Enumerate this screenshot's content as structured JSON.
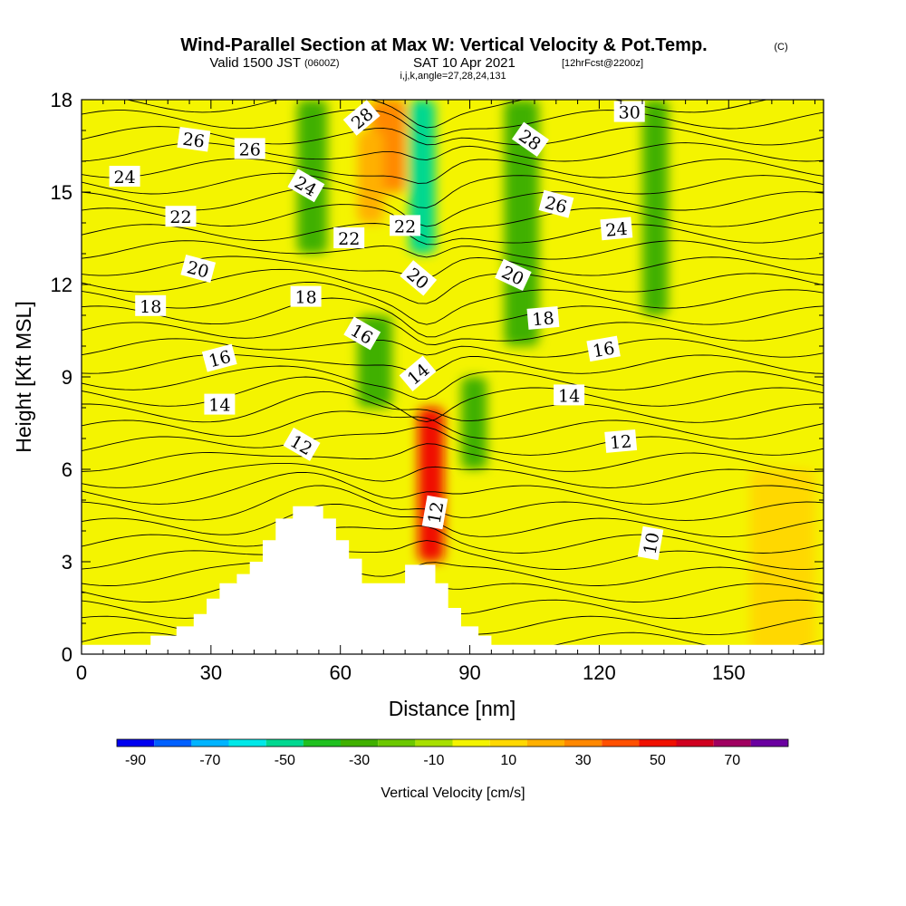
{
  "title": {
    "main": "Wind-Parallel Section at Max W: Vertical Velocity & Pot.Temp.",
    "copyright": "(C)",
    "valid_prefix": "Valid 1500 JST",
    "valid_utc": "(0600Z)",
    "valid_date": "SAT 10 Apr 2021",
    "forecast": "[12hrFcst@2200z]",
    "indices": "i,j,k,angle=27,28,24,131"
  },
  "chart_data": {
    "type": "heatmap",
    "xlabel": "Distance [nm]",
    "ylabel": "Height [Kft MSL]",
    "xlim": [
      0,
      172
    ],
    "ylim": [
      0,
      18
    ],
    "xticks": [
      0,
      30,
      60,
      90,
      120,
      150
    ],
    "yticks": [
      0,
      3,
      6,
      9,
      12,
      15,
      18
    ],
    "grid": false,
    "colorbar": {
      "label": "Vertical Velocity [cm/s]",
      "levels": [
        -90,
        -80,
        -70,
        -60,
        -50,
        -40,
        -30,
        -20,
        -10,
        0,
        10,
        20,
        30,
        40,
        50,
        60,
        70,
        80
      ],
      "tick_labels": [
        "-90",
        "-70",
        "-50",
        "-30",
        "-10",
        "10",
        "30",
        "50",
        "70"
      ],
      "colors": [
        "#0000f0",
        "#0060ff",
        "#00b4ff",
        "#00e8e8",
        "#00d890",
        "#20c020",
        "#40b000",
        "#6cc800",
        "#a8e000",
        "#f4f400",
        "#ffd800",
        "#ffb000",
        "#ff8800",
        "#ff5000",
        "#f01000",
        "#d00020",
        "#a00060",
        "#6a00a0"
      ]
    },
    "shaded_regions": [
      {
        "x": [
          67,
          75
        ],
        "y": [
          15,
          18
        ],
        "w": 30
      },
      {
        "x": [
          64,
          70
        ],
        "y": [
          14,
          17
        ],
        "w": 20
      },
      {
        "x": [
          76,
          82
        ],
        "y": [
          13,
          18
        ],
        "w": -50
      },
      {
        "x": [
          50,
          57
        ],
        "y": [
          13,
          18
        ],
        "w": -30
      },
      {
        "x": [
          98,
          106
        ],
        "y": [
          10,
          18
        ],
        "w": -30
      },
      {
        "x": [
          130,
          136
        ],
        "y": [
          11,
          18
        ],
        "w": -30
      },
      {
        "x": [
          78,
          84
        ],
        "y": [
          3,
          8
        ],
        "w": 50
      },
      {
        "x": [
          64,
          72
        ],
        "y": [
          8,
          11
        ],
        "w": -30
      },
      {
        "x": [
          88,
          94
        ],
        "y": [
          6,
          9
        ],
        "w": -30
      },
      {
        "x": [
          155,
          170
        ],
        "y": [
          0,
          6
        ],
        "w": 10
      }
    ],
    "terrain_top_kft": [
      [
        0,
        0.3
      ],
      [
        16,
        0.3
      ],
      [
        16,
        0.6
      ],
      [
        22,
        0.6
      ],
      [
        22,
        0.9
      ],
      [
        26,
        0.9
      ],
      [
        26,
        1.3
      ],
      [
        29,
        1.3
      ],
      [
        29,
        1.8
      ],
      [
        32,
        1.8
      ],
      [
        32,
        2.3
      ],
      [
        36,
        2.3
      ],
      [
        36,
        2.6
      ],
      [
        39,
        2.6
      ],
      [
        39,
        3.0
      ],
      [
        42,
        3.0
      ],
      [
        42,
        3.7
      ],
      [
        45,
        3.7
      ],
      [
        45,
        4.4
      ],
      [
        49,
        4.4
      ],
      [
        49,
        4.8
      ],
      [
        56,
        4.8
      ],
      [
        56,
        4.4
      ],
      [
        59,
        4.4
      ],
      [
        59,
        3.7
      ],
      [
        62,
        3.7
      ],
      [
        62,
        3.1
      ],
      [
        65,
        3.1
      ],
      [
        65,
        2.3
      ],
      [
        75,
        2.3
      ],
      [
        75,
        2.9
      ],
      [
        82,
        2.9
      ],
      [
        82,
        2.3
      ],
      [
        85,
        2.3
      ],
      [
        85,
        1.5
      ],
      [
        88,
        1.5
      ],
      [
        88,
        0.9
      ],
      [
        92,
        0.9
      ],
      [
        92,
        0.6
      ],
      [
        95,
        0.6
      ],
      [
        95,
        0.3
      ],
      [
        172,
        0.3
      ]
    ],
    "theta_contour_labels": [
      {
        "text": "28",
        "x": 65,
        "y": 17.4,
        "angle": -40
      },
      {
        "text": "30",
        "x": 127,
        "y": 17.6,
        "angle": 0
      },
      {
        "text": "26",
        "x": 26,
        "y": 16.7,
        "angle": 8
      },
      {
        "text": "26",
        "x": 39,
        "y": 16.4,
        "angle": 0
      },
      {
        "text": "28",
        "x": 104,
        "y": 16.7,
        "angle": 35
      },
      {
        "text": "24",
        "x": 10,
        "y": 15.5,
        "angle": 0
      },
      {
        "text": "24",
        "x": 52,
        "y": 15.2,
        "angle": 30
      },
      {
        "text": "26",
        "x": 110,
        "y": 14.6,
        "angle": 15
      },
      {
        "text": "22",
        "x": 23,
        "y": 14.2,
        "angle": 0
      },
      {
        "text": "22",
        "x": 75,
        "y": 13.9,
        "angle": 0
      },
      {
        "text": "22",
        "x": 62,
        "y": 13.5,
        "angle": 0
      },
      {
        "text": "24",
        "x": 124,
        "y": 13.8,
        "angle": -5
      },
      {
        "text": "20",
        "x": 27,
        "y": 12.5,
        "angle": 15
      },
      {
        "text": "20",
        "x": 78,
        "y": 12.2,
        "angle": 40
      },
      {
        "text": "20",
        "x": 100,
        "y": 12.3,
        "angle": 25
      },
      {
        "text": "18",
        "x": 16,
        "y": 11.3,
        "angle": 0
      },
      {
        "text": "18",
        "x": 52,
        "y": 11.6,
        "angle": 0
      },
      {
        "text": "18",
        "x": 107,
        "y": 10.9,
        "angle": -5
      },
      {
        "text": "16",
        "x": 65,
        "y": 10.4,
        "angle": 30
      },
      {
        "text": "16",
        "x": 32,
        "y": 9.6,
        "angle": -15
      },
      {
        "text": "16",
        "x": 121,
        "y": 9.9,
        "angle": -10
      },
      {
        "text": "14",
        "x": 78,
        "y": 9.1,
        "angle": -40
      },
      {
        "text": "14",
        "x": 32,
        "y": 8.1,
        "angle": 0
      },
      {
        "text": "14",
        "x": 113,
        "y": 8.4,
        "angle": 0
      },
      {
        "text": "12",
        "x": 51,
        "y": 6.8,
        "angle": 30
      },
      {
        "text": "12",
        "x": 125,
        "y": 6.9,
        "angle": -5
      },
      {
        "text": "12",
        "x": 82,
        "y": 4.6,
        "angle": -80
      },
      {
        "text": "10",
        "x": 132,
        "y": 3.6,
        "angle": -80
      }
    ]
  }
}
